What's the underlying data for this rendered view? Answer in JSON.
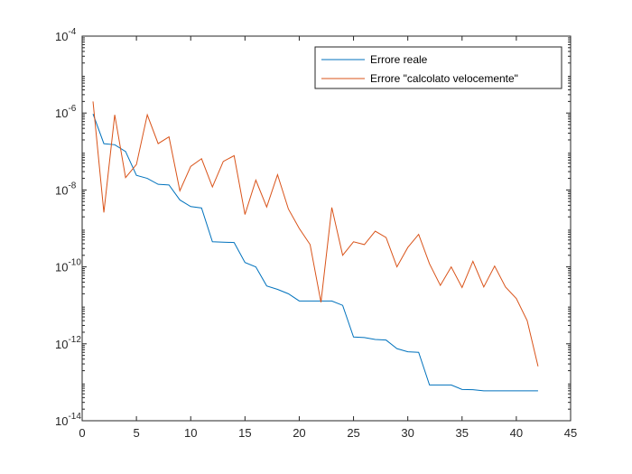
{
  "chart_data": {
    "type": "line",
    "title": "",
    "xlabel": "",
    "ylabel": "",
    "xlim": [
      0,
      45
    ],
    "ylim": [
      1e-14,
      0.0001
    ],
    "yscale": "log",
    "grid": false,
    "legend_position": "top-right",
    "x_ticks": [
      "0",
      "5",
      "10",
      "15",
      "20",
      "25",
      "30",
      "35",
      "40",
      "45"
    ],
    "y_ticks": [
      {
        "base": "10",
        "exp": "-14"
      },
      {
        "base": "10",
        "exp": "-12"
      },
      {
        "base": "10",
        "exp": "-10"
      },
      {
        "base": "10",
        "exp": "-8"
      },
      {
        "base": "10",
        "exp": "-6"
      },
      {
        "base": "10",
        "exp": "-4"
      }
    ],
    "x": [
      1,
      2,
      3,
      4,
      5,
      6,
      7,
      8,
      9,
      10,
      11,
      12,
      13,
      14,
      15,
      16,
      17,
      18,
      19,
      20,
      21,
      22,
      23,
      24,
      25,
      26,
      27,
      28,
      29,
      30,
      31,
      32,
      33,
      34,
      35,
      36,
      37,
      38,
      39,
      40,
      41,
      42
    ],
    "series": [
      {
        "name": "Errore reale",
        "color": "#0072BD",
        "values": [
          9.5e-07,
          1.6e-07,
          1.5e-07,
          1e-07,
          2.4e-08,
          2e-08,
          1.4e-08,
          1.35e-08,
          5.5e-09,
          3.7e-09,
          3.4e-09,
          4.5e-10,
          4.4e-10,
          4.3e-10,
          1.3e-10,
          1e-10,
          3.2e-11,
          2.6e-11,
          2e-11,
          1.3e-11,
          1.3e-11,
          1.3e-11,
          1.3e-11,
          1e-11,
          1.5e-12,
          1.45e-12,
          1.3e-12,
          1.25e-12,
          7.5e-13,
          6.2e-13,
          6e-13,
          8.5e-14,
          8.5e-14,
          8.5e-14,
          6.5e-14,
          6.4e-14,
          6e-14,
          6e-14,
          6e-14,
          6e-14,
          6e-14,
          6e-14
        ]
      },
      {
        "name": "Errore \"calcolato velocemente\"",
        "color": "#D95319",
        "values": [
          2e-06,
          2.6e-09,
          9e-07,
          2.1e-08,
          4.6e-08,
          9e-07,
          1.6e-07,
          2.4e-07,
          9.5e-09,
          4.1e-08,
          6.5e-08,
          1.2e-08,
          5.5e-08,
          7.8e-08,
          2.3e-09,
          1.8e-08,
          3.6e-09,
          2.5e-08,
          3.2e-09,
          1e-09,
          3.8e-10,
          1.2e-11,
          3.5e-09,
          2e-10,
          4.5e-10,
          3.8e-10,
          8.5e-10,
          5.8e-10,
          1e-10,
          3.2e-10,
          7e-10,
          1.2e-10,
          3.3e-11,
          1e-10,
          2.9e-11,
          1.4e-10,
          3e-11,
          1.05e-10,
          3e-11,
          1.5e-11,
          4e-12,
          2.6e-13
        ]
      }
    ]
  }
}
